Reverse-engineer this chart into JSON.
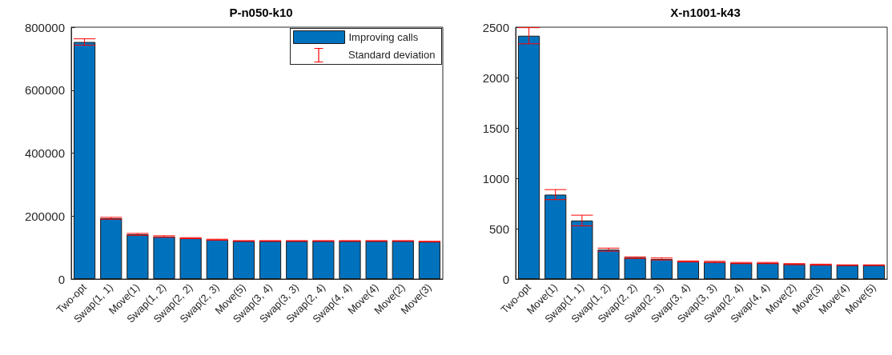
{
  "chart_data": [
    {
      "type": "bar",
      "title": "P-n050-k10",
      "categories": [
        "Two-opt",
        "Swap(1, 1)",
        "Move(1)",
        "Swap(1, 2)",
        "Swap(2, 2)",
        "Swap(2, 3)",
        "Move(5)",
        "Swap(3, 4)",
        "Swap(3, 3)",
        "Swap(2, 4)",
        "Swap(4, 4)",
        "Move(4)",
        "Move(2)",
        "Move(3)"
      ],
      "series": [
        {
          "name": "Improving calls",
          "color": "#0072bd",
          "values": [
            753000,
            193000,
            142000,
            135000,
            130000,
            125000,
            121000,
            121000,
            121000,
            121000,
            121000,
            121000,
            121000,
            119000
          ],
          "errors": [
            10000,
            3000,
            3000,
            2500,
            1500,
            1500,
            1000,
            1000,
            1000,
            1000,
            1000,
            1000,
            1000,
            1000
          ]
        }
      ],
      "ylim": [
        0,
        800000
      ],
      "yticks": [
        0,
        200000,
        400000,
        600000,
        800000
      ],
      "grid": false,
      "legend": "top right",
      "annotations": [
        "Standard deviation"
      ]
    },
    {
      "type": "bar",
      "title": "X-n1001-k43",
      "categories": [
        "Two-opt",
        "Move(1)",
        "Swap(1, 1)",
        "Swap(1, 2)",
        "Swap(2, 2)",
        "Swap(2, 3)",
        "Swap(3, 4)",
        "Swap(3, 3)",
        "Swap(2, 4)",
        "Swap(4, 4)",
        "Move(2)",
        "Move(3)",
        "Move(4)",
        "Move(5)"
      ],
      "series": [
        {
          "color": "#0072bd",
          "values": [
            2415,
            838,
            581,
            292,
            212,
            199,
            175,
            170,
            159,
            159,
            148,
            143,
            138,
            138
          ],
          "errors": [
            80,
            50,
            53,
            15,
            8,
            10,
            5,
            6,
            6,
            6,
            5,
            5,
            3,
            3
          ]
        }
      ],
      "ylim": [
        0,
        2500
      ],
      "yticks": [
        0,
        500,
        1000,
        1500,
        2000,
        2500
      ],
      "grid": false,
      "legend": false
    }
  ]
}
